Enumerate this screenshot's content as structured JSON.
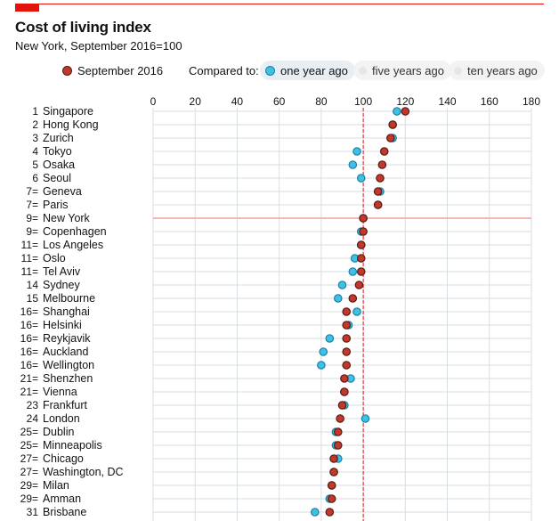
{
  "title": "Cost of living index",
  "subtitle": "New York, September 2016=100",
  "legend": {
    "september": {
      "label": "September 2016",
      "color": "#c0392b"
    },
    "compared_label": "Compared to:",
    "one_year": {
      "label": "one year ago",
      "color": "#3fc1e6"
    },
    "five_years": {
      "label": "five years ago"
    },
    "ten_years": {
      "label": "ten years ago"
    }
  },
  "chart_data": {
    "type": "scatter",
    "title": "Cost of living index",
    "subtitle": "New York, September 2016=100",
    "x_ticks": [
      0,
      20,
      40,
      60,
      80,
      100,
      120,
      140,
      160,
      180
    ],
    "xlim": [
      0,
      180
    ],
    "reference_value": 100,
    "legend_position": "top",
    "rows": [
      {
        "rank": "1",
        "city": "Singapore",
        "sep2016": 120,
        "one_year_ago": 116
      },
      {
        "rank": "2",
        "city": "Hong Kong",
        "sep2016": 114,
        "one_year_ago": 114
      },
      {
        "rank": "3",
        "city": "Zurich",
        "sep2016": 113,
        "one_year_ago": 114
      },
      {
        "rank": "4",
        "city": "Tokyo",
        "sep2016": 110,
        "one_year_ago": 97
      },
      {
        "rank": "5",
        "city": "Osaka",
        "sep2016": 109,
        "one_year_ago": 95
      },
      {
        "rank": "6",
        "city": "Seoul",
        "sep2016": 108,
        "one_year_ago": 99
      },
      {
        "rank": "7=",
        "city": "Geneva",
        "sep2016": 107,
        "one_year_ago": 108
      },
      {
        "rank": "7=",
        "city": "Paris",
        "sep2016": 107,
        "one_year_ago": 107
      },
      {
        "rank": "9=",
        "city": "New York",
        "sep2016": 100,
        "one_year_ago": 100
      },
      {
        "rank": "9=",
        "city": "Copenhagen",
        "sep2016": 100,
        "one_year_ago": 99
      },
      {
        "rank": "11=",
        "city": "Los Angeles",
        "sep2016": 99,
        "one_year_ago": 99
      },
      {
        "rank": "11=",
        "city": "Oslo",
        "sep2016": 99,
        "one_year_ago": 96
      },
      {
        "rank": "11=",
        "city": "Tel Aviv",
        "sep2016": 99,
        "one_year_ago": 95
      },
      {
        "rank": "14",
        "city": "Sydney",
        "sep2016": 98,
        "one_year_ago": 90
      },
      {
        "rank": "15",
        "city": "Melbourne",
        "sep2016": 95,
        "one_year_ago": 88
      },
      {
        "rank": "16=",
        "city": "Shanghai",
        "sep2016": 92,
        "one_year_ago": 97
      },
      {
        "rank": "16=",
        "city": "Helsinki",
        "sep2016": 92,
        "one_year_ago": 93
      },
      {
        "rank": "16=",
        "city": "Reykjavik",
        "sep2016": 92,
        "one_year_ago": 84
      },
      {
        "rank": "16=",
        "city": "Auckland",
        "sep2016": 92,
        "one_year_ago": 81
      },
      {
        "rank": "16=",
        "city": "Wellington",
        "sep2016": 92,
        "one_year_ago": 80
      },
      {
        "rank": "21=",
        "city": "Shenzhen",
        "sep2016": 91,
        "one_year_ago": 94
      },
      {
        "rank": "21=",
        "city": "Vienna",
        "sep2016": 91,
        "one_year_ago": 91
      },
      {
        "rank": "23",
        "city": "Frankfurt",
        "sep2016": 90,
        "one_year_ago": 91
      },
      {
        "rank": "24",
        "city": "London",
        "sep2016": 89,
        "one_year_ago": 101
      },
      {
        "rank": "25=",
        "city": "Dublin",
        "sep2016": 88,
        "one_year_ago": 87
      },
      {
        "rank": "25=",
        "city": "Minneapolis",
        "sep2016": 88,
        "one_year_ago": 87
      },
      {
        "rank": "27=",
        "city": "Chicago",
        "sep2016": 86,
        "one_year_ago": 88
      },
      {
        "rank": "27=",
        "city": "Washington, DC",
        "sep2016": 86,
        "one_year_ago": 86
      },
      {
        "rank": "29=",
        "city": "Milan",
        "sep2016": 85,
        "one_year_ago": 85
      },
      {
        "rank": "29=",
        "city": "Amman",
        "sep2016": 85,
        "one_year_ago": 84
      },
      {
        "rank": "31",
        "city": "Brisbane",
        "sep2016": 84,
        "one_year_ago": 77
      }
    ]
  },
  "colors": {
    "accent": "#e3120b",
    "sep_fill": "#c0392b",
    "sep_stroke": "#5a1a12",
    "year_fill": "#3fc1e6",
    "year_stroke": "#1c7fa4",
    "grid": "#d7dee3",
    "ref_line": "#e3120b",
    "highlight": "#f3b8b4"
  }
}
